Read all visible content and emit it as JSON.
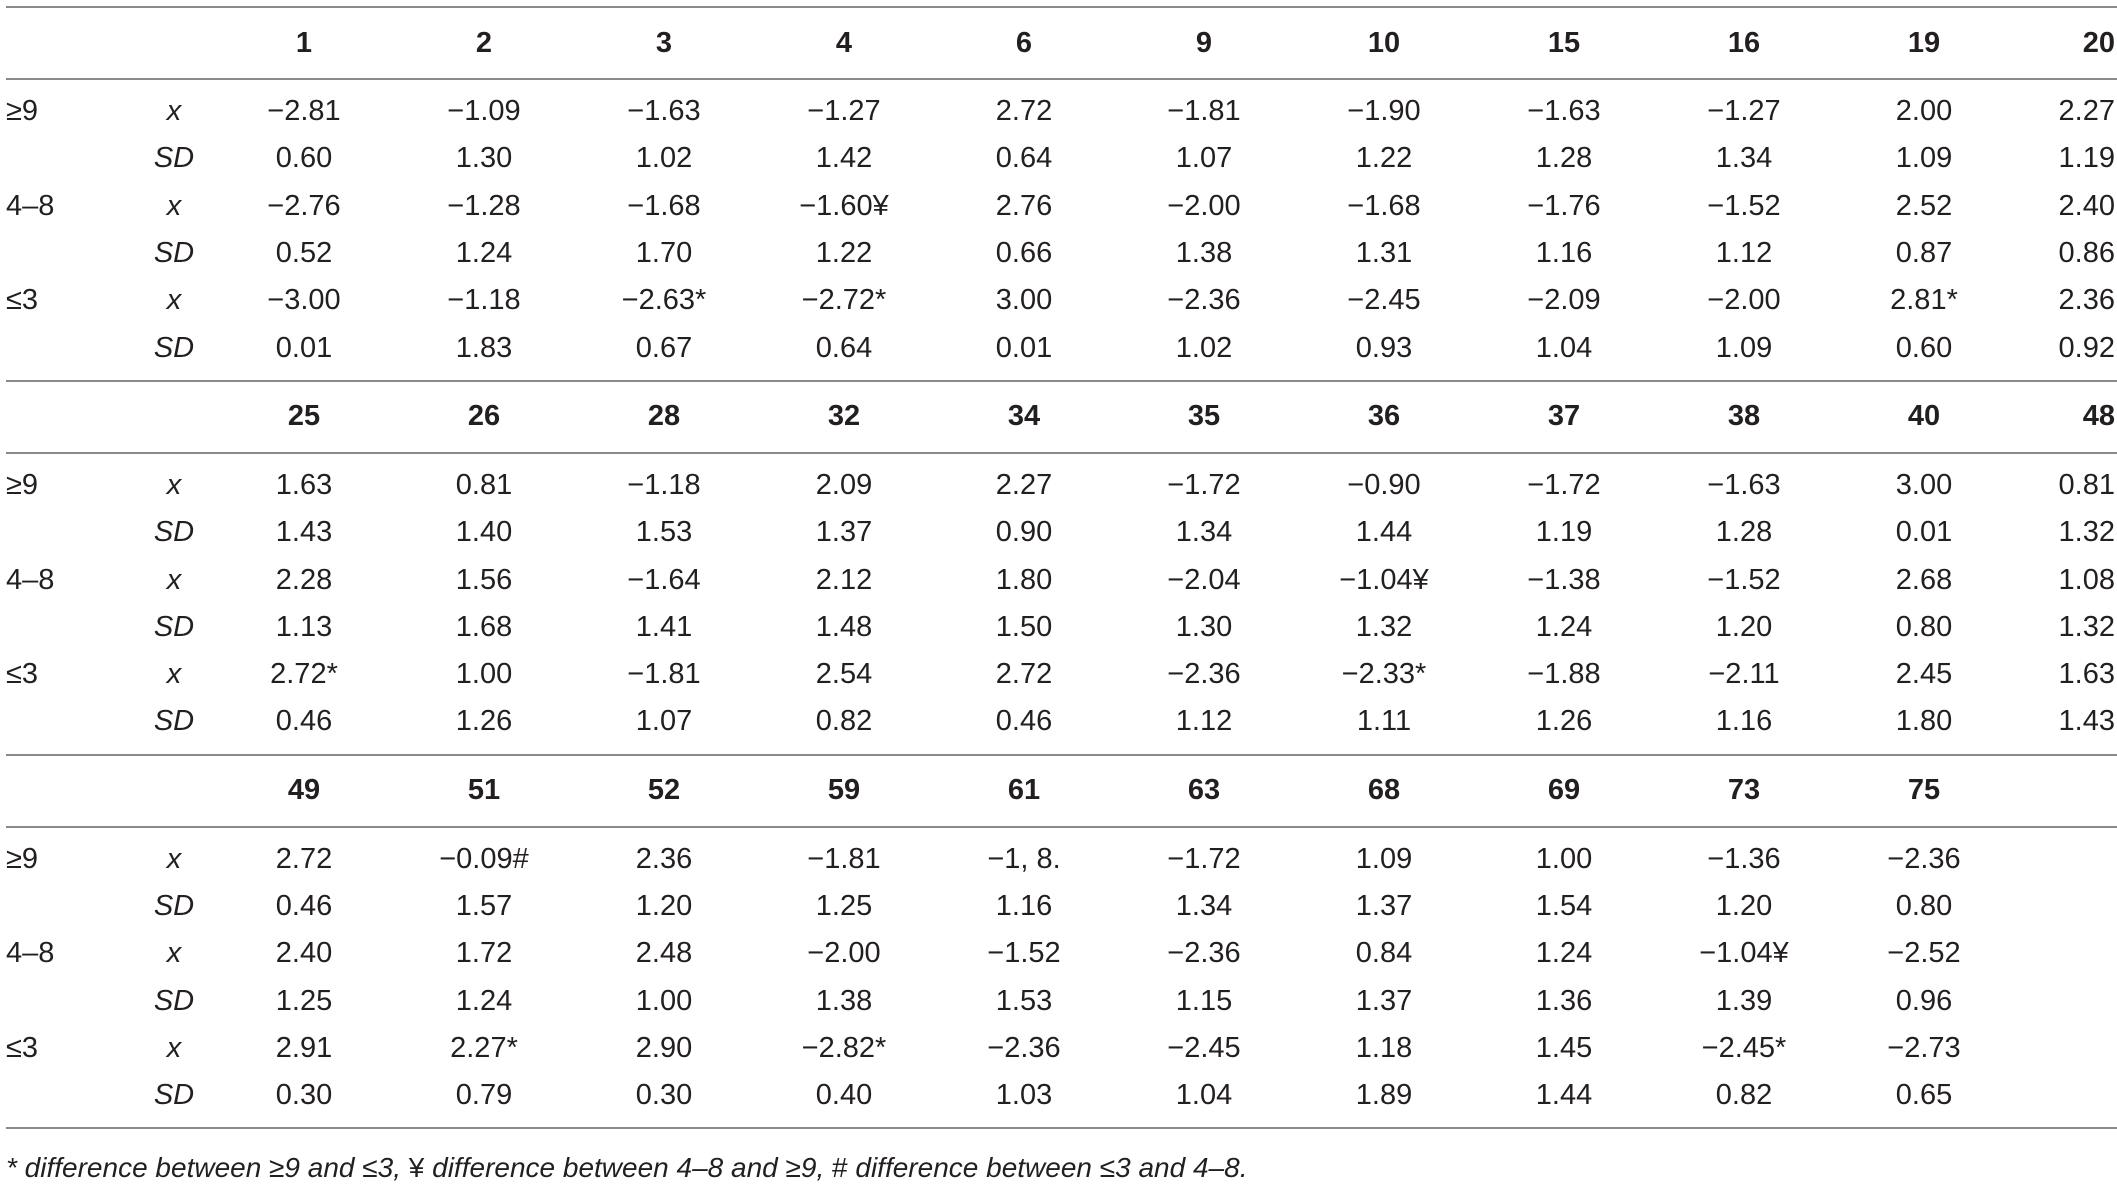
{
  "blocks": [
    {
      "columns": [
        "1",
        "2",
        "3",
        "4",
        "6",
        "9",
        "10",
        "15",
        "16",
        "19",
        "20"
      ],
      "rows": [
        {
          "group": "≥9",
          "stat": "x",
          "values": [
            "−2.81",
            "−1.09",
            "−1.63",
            "−1.27",
            "2.72",
            "−1.81",
            "−1.90",
            "−1.63",
            "−1.27",
            "2.00",
            "2.27"
          ]
        },
        {
          "group": "",
          "stat": "SD",
          "values": [
            "0.60",
            "1.30",
            "1.02",
            "1.42",
            "0.64",
            "1.07",
            "1.22",
            "1.28",
            "1.34",
            "1.09",
            "1.19"
          ]
        },
        {
          "group": "4–8",
          "stat": "x",
          "values": [
            "−2.76",
            "−1.28",
            "−1.68",
            "−1.60¥",
            "2.76",
            "−2.00",
            "−1.68",
            "−1.76",
            "−1.52",
            "2.52",
            "2.40"
          ]
        },
        {
          "group": "",
          "stat": "SD",
          "values": [
            "0.52",
            "1.24",
            "1.70",
            "1.22",
            "0.66",
            "1.38",
            "1.31",
            "1.16",
            "1.12",
            "0.87",
            "0.86"
          ]
        },
        {
          "group": "≤3",
          "stat": "x",
          "values": [
            "−3.00",
            "−1.18",
            "−2.63*",
            "−2.72*",
            "3.00",
            "−2.36",
            "−2.45",
            "−2.09",
            "−2.00",
            "2.81*",
            "2.36"
          ]
        },
        {
          "group": "",
          "stat": "SD",
          "values": [
            "0.01",
            "1.83",
            "0.67",
            "0.64",
            "0.01",
            "1.02",
            "0.93",
            "1.04",
            "1.09",
            "0.60",
            "0.92"
          ]
        }
      ]
    },
    {
      "columns": [
        "25",
        "26",
        "28",
        "32",
        "34",
        "35",
        "36",
        "37",
        "38",
        "40",
        "48"
      ],
      "rows": [
        {
          "group": "≥9",
          "stat": "x",
          "values": [
            "1.63",
            "0.81",
            "−1.18",
            "2.09",
            "2.27",
            "−1.72",
            "−0.90",
            "−1.72",
            "−1.63",
            "3.00",
            "0.81"
          ]
        },
        {
          "group": "",
          "stat": "SD",
          "values": [
            "1.43",
            "1.40",
            "1.53",
            "1.37",
            "0.90",
            "1.34",
            "1.44",
            "1.19",
            "1.28",
            "0.01",
            "1.32"
          ]
        },
        {
          "group": "4–8",
          "stat": "x",
          "values": [
            "2.28",
            "1.56",
            "−1.64",
            "2.12",
            "1.80",
            "−2.04",
            "−1.04¥",
            "−1.38",
            "−1.52",
            "2.68",
            "1.08"
          ]
        },
        {
          "group": "",
          "stat": "SD",
          "values": [
            "1.13",
            "1.68",
            "1.41",
            "1.48",
            "1.50",
            "1.30",
            "1.32",
            "1.24",
            "1.20",
            "0.80",
            "1.32"
          ]
        },
        {
          "group": "≤3",
          "stat": "x",
          "values": [
            "2.72*",
            "1.00",
            "−1.81",
            "2.54",
            "2.72",
            "−2.36",
            "−2.33*",
            "−1.88",
            "−2.11",
            "2.45",
            "1.63"
          ]
        },
        {
          "group": "",
          "stat": "SD",
          "values": [
            "0.46",
            "1.26",
            "1.07",
            "0.82",
            "0.46",
            "1.12",
            "1.11",
            "1.26",
            "1.16",
            "1.80",
            "1.43"
          ]
        }
      ]
    },
    {
      "columns": [
        "49",
        "51",
        "52",
        "59",
        "61",
        "63",
        "68",
        "69",
        "73",
        "75",
        ""
      ],
      "rows": [
        {
          "group": "≥9",
          "stat": "x",
          "values": [
            "2.72",
            "−0.09#",
            "2.36",
            "−1.81",
            "−1, 8.",
            "−1.72",
            "1.09",
            "1.00",
            "−1.36",
            "−2.36",
            ""
          ]
        },
        {
          "group": "",
          "stat": "SD",
          "values": [
            "0.46",
            "1.57",
            "1.20",
            "1.25",
            "1.16",
            "1.34",
            "1.37",
            "1.54",
            "1.20",
            "0.80",
            ""
          ]
        },
        {
          "group": "4–8",
          "stat": "x",
          "values": [
            "2.40",
            "1.72",
            "2.48",
            "−2.00",
            "−1.52",
            "−2.36",
            "0.84",
            "1.24",
            "−1.04¥",
            "−2.52",
            ""
          ]
        },
        {
          "group": "",
          "stat": "SD",
          "values": [
            "1.25",
            "1.24",
            "1.00",
            "1.38",
            "1.53",
            "1.15",
            "1.37",
            "1.36",
            "1.39",
            "0.96",
            ""
          ]
        },
        {
          "group": "≤3",
          "stat": "x",
          "values": [
            "2.91",
            "2.27*",
            "2.90",
            "−2.82*",
            "−2.36",
            "−2.45",
            "1.18",
            "1.45",
            "−2.45*",
            "−2.73",
            ""
          ]
        },
        {
          "group": "",
          "stat": "SD",
          "values": [
            "0.30",
            "0.79",
            "0.30",
            "0.40",
            "1.03",
            "1.04",
            "1.89",
            "1.44",
            "0.82",
            "0.65",
            ""
          ]
        }
      ]
    }
  ],
  "footnote": {
    "part1": "* difference between ≥9 and ≤3, ",
    "sym1": "¥",
    "part2": " difference between 4–8 and ≥9, ",
    "sym2": "#",
    "part3": " difference between ≤3 and 4–8."
  }
}
